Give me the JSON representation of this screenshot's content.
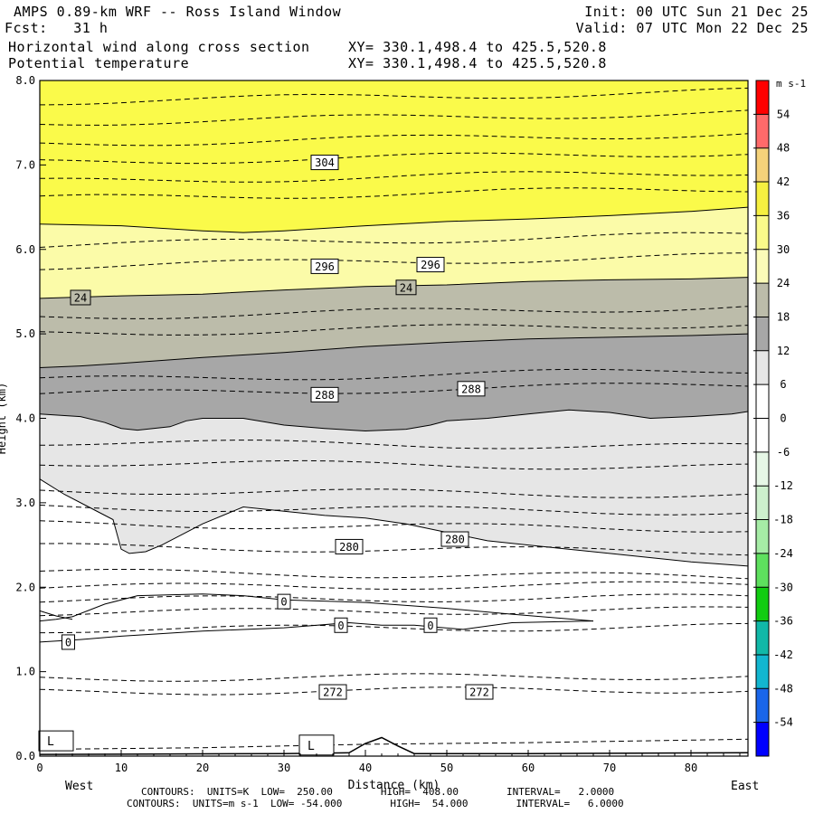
{
  "header": {
    "title": "AMPS 0.89-km WRF -- Ross Island Window",
    "forecast": "Fcst:   31 h",
    "field1": "Horizontal wind along cross section",
    "field2": "Potential temperature",
    "xy1": "XY= 330.1,498.4 to 425.5,520.8",
    "xy2": "XY= 330.1,498.4 to 425.5,520.8",
    "init": "Init: 00 UTC Sun 21 Dec 25",
    "valid": "Valid: 07 UTC Mon 22 Dec 25"
  },
  "footer": {
    "line1": "CONTOURS:  UNITS=K  LOW=  250.00        HIGH=  408.00        INTERVAL=   2.0000",
    "line2": "CONTOURS:  UNITS=m s-1  LOW= -54.000        HIGH=  54.000        INTERVAL=   6.0000"
  },
  "chart_data": {
    "type": "heatmap",
    "xlabel": "Distance (km)",
    "ylabel": "Height (km)",
    "x_end_labels": [
      "West",
      "East"
    ],
    "xlim": [
      0,
      87
    ],
    "ylim": [
      0,
      8
    ],
    "xticks": [
      0,
      10,
      20,
      30,
      40,
      50,
      60,
      70,
      80
    ],
    "yticks": [
      "0.0",
      "1.0",
      "2.0",
      "3.0",
      "4.0",
      "5.0",
      "6.0",
      "7.0",
      "8.0"
    ],
    "colorbar": {
      "unit": "m s-1",
      "levels": [
        54,
        48,
        42,
        36,
        30,
        24,
        18,
        12,
        6,
        0,
        -6,
        -12,
        -18,
        -24,
        -30,
        -36,
        -42,
        -48,
        -54
      ],
      "colors": [
        "#ff0000",
        "#ff6a6a",
        "#f5d27a",
        "#f6f040",
        "#fafa8a",
        "#fbfbb8",
        "#bcbcaa",
        "#a7a7a7",
        "#e6e6e6",
        "#ffffff",
        "#ffffff",
        "#e6f7e6",
        "#cdf0cd",
        "#a6eca6",
        "#5ee05e",
        "#11cc11",
        "#11b8a8",
        "#12b6d0",
        "#1a66ea",
        "#0000ff"
      ]
    },
    "wind_fill_bands": [
      {
        "level_ms": 30,
        "color": "#fafa4a",
        "top_km": 8.0,
        "bottom_west_km": 6.3,
        "bottom_east_km": 6.5
      },
      {
        "level_ms": 24,
        "color": "#fbfba8",
        "top_west_km": 6.3,
        "bottom_west_km": 5.42,
        "bottom_east_km": 5.67
      },
      {
        "level_ms": 18,
        "color": "#bcbcaa",
        "top_west_km": 5.42,
        "bottom_west_km": 4.6,
        "bottom_east_km": 5.0
      },
      {
        "level_ms": 12,
        "color": "#a7a7a7",
        "top_west_km": 4.6,
        "bottom_west_km": 4.05,
        "bottom_east_km": 4.08
      },
      {
        "level_ms": 6,
        "color": "#e6e6e6",
        "top_west_km": 4.05,
        "bottom_west_km": 3.28,
        "bottom_east_km": 2.25
      }
    ],
    "theta_labels_K": [
      {
        "text": "304",
        "x_km": 35,
        "z_km": 7.03
      },
      {
        "text": "296",
        "x_km": 35,
        "z_km": 5.8
      },
      {
        "text": "296",
        "x_km": 48,
        "z_km": 5.82
      },
      {
        "text": "288",
        "x_km": 35,
        "z_km": 4.28
      },
      {
        "text": "288",
        "x_km": 53,
        "z_km": 4.35
      },
      {
        "text": "280",
        "x_km": 38,
        "z_km": 2.48
      },
      {
        "text": "280",
        "x_km": 51,
        "z_km": 2.57
      },
      {
        "text": "272",
        "x_km": 36,
        "z_km": 0.76
      },
      {
        "text": "272",
        "x_km": 54,
        "z_km": 0.76
      }
    ],
    "wind_labels_ms": [
      {
        "text": "24",
        "x_km": 5,
        "z_km": 5.43
      },
      {
        "text": "24",
        "x_km": 45,
        "z_km": 5.55
      },
      {
        "text": "0",
        "x_km": 3.5,
        "z_km": 1.35
      },
      {
        "text": "0",
        "x_km": 30,
        "z_km": 1.83
      },
      {
        "text": "0",
        "x_km": 37,
        "z_km": 1.55
      },
      {
        "text": "0",
        "x_km": 48,
        "z_km": 1.55
      }
    ],
    "low_markers": [
      {
        "text": "L",
        "x_km": 2,
        "z_km": 0.17
      },
      {
        "text": "L",
        "x_km": 34,
        "z_km": 0.12
      }
    ]
  }
}
